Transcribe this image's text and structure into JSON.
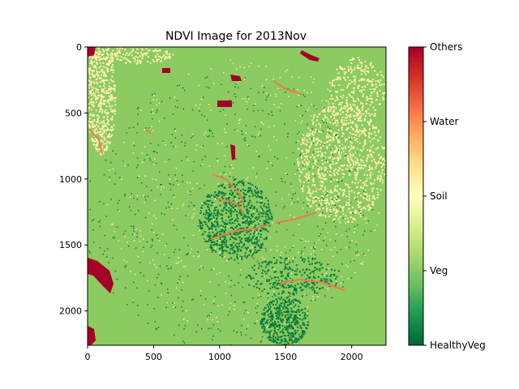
{
  "chart_data": {
    "type": "heatmap",
    "title": "NDVI Image for 2013Nov",
    "xlim": [
      0,
      2260
    ],
    "ylim": [
      2260,
      0
    ],
    "x_ticks": [
      0,
      500,
      1000,
      1500,
      2000
    ],
    "y_ticks": [
      0,
      500,
      1000,
      1500,
      2000
    ],
    "colormap": "RdYlGn_r",
    "colorbar": {
      "labels": [
        "HealthyVeg",
        "Veg",
        "Soil",
        "Water",
        "Others"
      ],
      "colors": [
        "#006837",
        "#66bd63",
        "#ffffbf",
        "#f46d43",
        "#a50026"
      ],
      "stops": [
        "#006837",
        "#1a9850",
        "#66bd63",
        "#a6d96a",
        "#d9ef8b",
        "#ffffbf",
        "#fee08b",
        "#fdae61",
        "#f46d43",
        "#d73027",
        "#a50026"
      ]
    },
    "classes": {
      "background": "Veg",
      "background_color": "#8cca62",
      "dark_veg_color": "#0a7a3a",
      "soil_color": "#fff0b0",
      "water_color": "#f07a4c",
      "others_color": "#a50026"
    }
  }
}
